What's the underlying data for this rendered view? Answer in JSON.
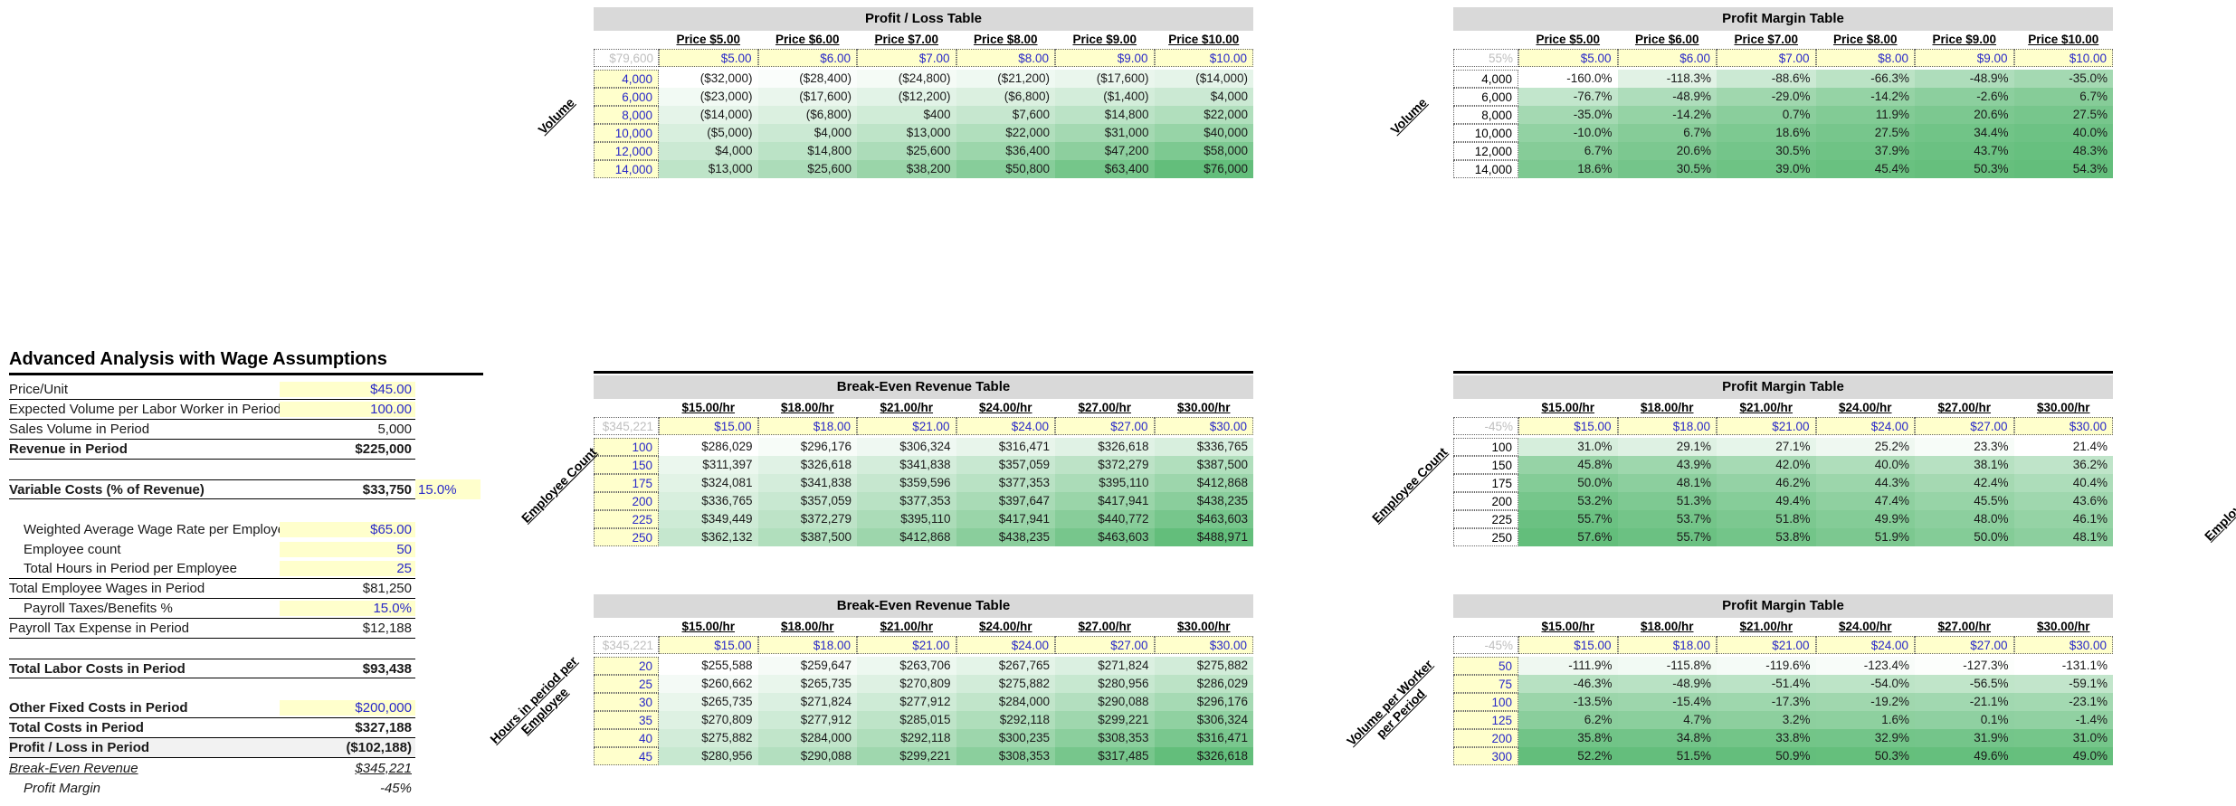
{
  "left_panel": {
    "title": "Advanced Analysis with Wage Assumptions",
    "rows": [
      {
        "label": "Price/Unit",
        "value": "$45.00",
        "value_style": "input",
        "border": true
      },
      {
        "label": "Expected Volume per Labor Worker in Period",
        "value": "100.00",
        "value_style": "input",
        "border": true
      },
      {
        "label": "Sales Volume in Period",
        "value": "5,000",
        "value_style": "plain",
        "border": true
      },
      {
        "label": "Revenue in Period",
        "value": "$225,000",
        "bold": true,
        "border": true
      },
      {
        "spacer": true
      },
      {
        "label": "Variable Costs (% of Revenue)",
        "value": "$33,750",
        "extra": "15.0%",
        "bold": true,
        "border": true,
        "topborder": true
      },
      {
        "spacer": true
      },
      {
        "label": "Weighted Average Wage Rate per Employee",
        "value": "$65.00",
        "value_style": "input",
        "indent": true
      },
      {
        "label": "Employee count",
        "value": "50",
        "value_style": "input",
        "indent": true
      },
      {
        "label": "Total Hours in Period per Employee",
        "value": "25",
        "value_style": "input",
        "indent": true,
        "border": true
      },
      {
        "label": "Total Employee Wages in Period",
        "value": "$81,250",
        "value_style": "plain",
        "border": true
      },
      {
        "label": "Payroll Taxes/Benefits %",
        "value": "15.0%",
        "value_style": "input",
        "indent": true,
        "border": true
      },
      {
        "label": "Payroll Tax Expense in Period",
        "value": "$12,188",
        "value_style": "plain",
        "border": true
      },
      {
        "spacer": true
      },
      {
        "label": "Total Labor Costs in Period",
        "value": "$93,438",
        "bold": true,
        "border": true,
        "topborder": true
      },
      {
        "spacer": true
      },
      {
        "label": "Other Fixed Costs in Period",
        "value": "$200,000",
        "bold": true,
        "value_style": "input",
        "border": true
      },
      {
        "label": "Total Costs in Period",
        "value": "$327,188",
        "bold": true,
        "border": true
      },
      {
        "label": "Profit / Loss in Period",
        "value": "($102,188)",
        "bold": true,
        "grey": true,
        "border": true
      },
      {
        "label": "Break-Even Revenue",
        "value": "$345,221",
        "italic": true,
        "underline": true
      },
      {
        "label": "Profit Margin",
        "value": "-45%",
        "italic": true,
        "indent": true
      }
    ]
  },
  "tables": [
    {
      "title": "Profit / Loss Table",
      "corner": "$79,600",
      "col_headers": [
        "Price $5.00",
        "Price $6.00",
        "Price $7.00",
        "Price $8.00",
        "Price $9.00",
        "Price $10.00"
      ],
      "input_row": [
        "$5.00",
        "$6.00",
        "$7.00",
        "$8.00",
        "$9.00",
        "$10.00"
      ],
      "row_header_style": "input",
      "row_headers": [
        "4,000",
        "6,000",
        "8,000",
        "10,000",
        "12,000",
        "14,000"
      ],
      "rows": [
        [
          "($32,000)",
          "($28,400)",
          "($24,800)",
          "($21,200)",
          "($17,600)",
          "($14,000)"
        ],
        [
          "($23,000)",
          "($17,600)",
          "($12,200)",
          "($6,800)",
          "($1,400)",
          "$4,000"
        ],
        [
          "($14,000)",
          "($6,800)",
          "$400",
          "$7,600",
          "$14,800",
          "$22,000"
        ],
        [
          "($5,000)",
          "$4,000",
          "$13,000",
          "$22,000",
          "$31,000",
          "$40,000"
        ],
        [
          "$4,000",
          "$14,800",
          "$25,600",
          "$36,400",
          "$47,200",
          "$58,000"
        ],
        [
          "$13,000",
          "$25,600",
          "$38,200",
          "$50,800",
          "$63,400",
          "$76,000"
        ]
      ]
    },
    {
      "title": "Profit Margin Table",
      "corner": "55%",
      "col_headers": [
        "Price $5.00",
        "Price $6.00",
        "Price $7.00",
        "Price $8.00",
        "Price $9.00",
        "Price $10.00"
      ],
      "input_row": [
        "$5.00",
        "$6.00",
        "$7.00",
        "$8.00",
        "$9.00",
        "$10.00"
      ],
      "row_header_style": "plain",
      "row_headers": [
        "4,000",
        "6,000",
        "8,000",
        "10,000",
        "12,000",
        "14,000"
      ],
      "rows": [
        [
          "-160.0%",
          "-118.3%",
          "-88.6%",
          "-66.3%",
          "-48.9%",
          "-35.0%"
        ],
        [
          "-76.7%",
          "-48.9%",
          "-29.0%",
          "-14.2%",
          "-2.6%",
          "6.7%"
        ],
        [
          "-35.0%",
          "-14.2%",
          "0.7%",
          "11.9%",
          "20.6%",
          "27.5%"
        ],
        [
          "-10.0%",
          "6.7%",
          "18.6%",
          "27.5%",
          "34.4%",
          "40.0%"
        ],
        [
          "6.7%",
          "20.6%",
          "30.5%",
          "37.9%",
          "43.7%",
          "48.3%"
        ],
        [
          "18.6%",
          "30.5%",
          "39.0%",
          "45.4%",
          "50.3%",
          "54.3%"
        ]
      ]
    },
    {
      "title": "Break-Even Revenue Table",
      "corner": "$345,221",
      "col_headers": [
        "$15.00/hr",
        "$18.00/hr",
        "$21.00/hr",
        "$24.00/hr",
        "$27.00/hr",
        "$30.00/hr"
      ],
      "input_row": [
        "$15.00",
        "$18.00",
        "$21.00",
        "$24.00",
        "$27.00",
        "$30.00"
      ],
      "row_header_style": "input",
      "row_headers": [
        "100",
        "150",
        "175",
        "200",
        "225",
        "250"
      ],
      "rows": [
        [
          "$286,029",
          "$296,176",
          "$306,324",
          "$316,471",
          "$326,618",
          "$336,765"
        ],
        [
          "$311,397",
          "$326,618",
          "$341,838",
          "$357,059",
          "$372,279",
          "$387,500"
        ],
        [
          "$324,081",
          "$341,838",
          "$359,596",
          "$377,353",
          "$395,110",
          "$412,868"
        ],
        [
          "$336,765",
          "$357,059",
          "$377,353",
          "$397,647",
          "$417,941",
          "$438,235"
        ],
        [
          "$349,449",
          "$372,279",
          "$395,110",
          "$417,941",
          "$440,772",
          "$463,603"
        ],
        [
          "$362,132",
          "$387,500",
          "$412,868",
          "$438,235",
          "$463,603",
          "$488,971"
        ]
      ]
    },
    {
      "title": "Profit Margin Table",
      "corner": "-45%",
      "col_headers": [
        "$15.00/hr",
        "$18.00/hr",
        "$21.00/hr",
        "$24.00/hr",
        "$27.00/hr",
        "$30.00/hr"
      ],
      "input_row": [
        "$15.00",
        "$18.00",
        "$21.00",
        "$24.00",
        "$27.00",
        "$30.00"
      ],
      "row_header_style": "plain",
      "row_headers": [
        "100",
        "150",
        "175",
        "200",
        "225",
        "250"
      ],
      "rows": [
        [
          "31.0%",
          "29.1%",
          "27.1%",
          "25.2%",
          "23.3%",
          "21.4%"
        ],
        [
          "45.8%",
          "43.9%",
          "42.0%",
          "40.0%",
          "38.1%",
          "36.2%"
        ],
        [
          "50.0%",
          "48.1%",
          "46.2%",
          "44.3%",
          "42.4%",
          "40.4%"
        ],
        [
          "53.2%",
          "51.3%",
          "49.4%",
          "47.4%",
          "45.5%",
          "43.6%"
        ],
        [
          "55.7%",
          "53.7%",
          "51.8%",
          "49.9%",
          "48.0%",
          "46.1%"
        ],
        [
          "57.6%",
          "55.7%",
          "53.8%",
          "51.9%",
          "50.0%",
          "48.1%"
        ]
      ]
    },
    {
      "title": "Break-Even Revenue Table",
      "corner": "$345,221",
      "col_headers": [
        "$15.00/hr",
        "$18.00/hr",
        "$21.00/hr",
        "$24.00/hr",
        "$27.00/hr",
        "$30.00/hr"
      ],
      "input_row": [
        "$15.00",
        "$18.00",
        "$21.00",
        "$24.00",
        "$27.00",
        "$30.00"
      ],
      "row_header_style": "input",
      "row_headers": [
        "20",
        "25",
        "30",
        "35",
        "40",
        "45"
      ],
      "rows": [
        [
          "$255,588",
          "$259,647",
          "$263,706",
          "$267,765",
          "$271,824",
          "$275,882"
        ],
        [
          "$260,662",
          "$265,735",
          "$270,809",
          "$275,882",
          "$280,956",
          "$286,029"
        ],
        [
          "$265,735",
          "$271,824",
          "$277,912",
          "$284,000",
          "$290,088",
          "$296,176"
        ],
        [
          "$270,809",
          "$277,912",
          "$285,015",
          "$292,118",
          "$299,221",
          "$306,324"
        ],
        [
          "$275,882",
          "$284,000",
          "$292,118",
          "$300,235",
          "$308,353",
          "$316,471"
        ],
        [
          "$280,956",
          "$290,088",
          "$299,221",
          "$308,353",
          "$317,485",
          "$326,618"
        ]
      ]
    },
    {
      "title": "Profit Margin Table",
      "corner": "-45%",
      "col_headers": [
        "$15.00/hr",
        "$18.00/hr",
        "$21.00/hr",
        "$24.00/hr",
        "$27.00/hr",
        "$30.00/hr"
      ],
      "input_row": [
        "$15.00",
        "$18.00",
        "$21.00",
        "$24.00",
        "$27.00",
        "$30.00"
      ],
      "row_header_style": "input",
      "row_headers": [
        "50",
        "75",
        "100",
        "125",
        "200",
        "300"
      ],
      "rows": [
        [
          "-111.9%",
          "-115.8%",
          "-119.6%",
          "-123.4%",
          "-127.3%",
          "-131.1%"
        ],
        [
          "-46.3%",
          "-48.9%",
          "-51.4%",
          "-54.0%",
          "-56.5%",
          "-59.1%"
        ],
        [
          "-13.5%",
          "-15.4%",
          "-17.3%",
          "-19.2%",
          "-21.1%",
          "-23.1%"
        ],
        [
          "6.2%",
          "4.7%",
          "3.2%",
          "1.6%",
          "0.1%",
          "-1.4%"
        ],
        [
          "35.8%",
          "34.8%",
          "33.8%",
          "32.9%",
          "31.9%",
          "31.0%"
        ],
        [
          "52.2%",
          "51.5%",
          "50.9%",
          "50.3%",
          "49.6%",
          "49.0%"
        ]
      ]
    }
  ],
  "axis_labels": [
    "Volume",
    "Volume",
    "Employee Count",
    "Employee Count",
    "Hours in period per Employee",
    "Volume per Worker per Period",
    "Employee Count"
  ],
  "colors": {
    "input_bg": "#FFFFCC",
    "input_text": "#2929C8",
    "title_bg": "#D9D9D9",
    "corner_text": "#BFBFBF",
    "scale_low": "#FFFFFF",
    "scale_high": "#63BE7B"
  }
}
